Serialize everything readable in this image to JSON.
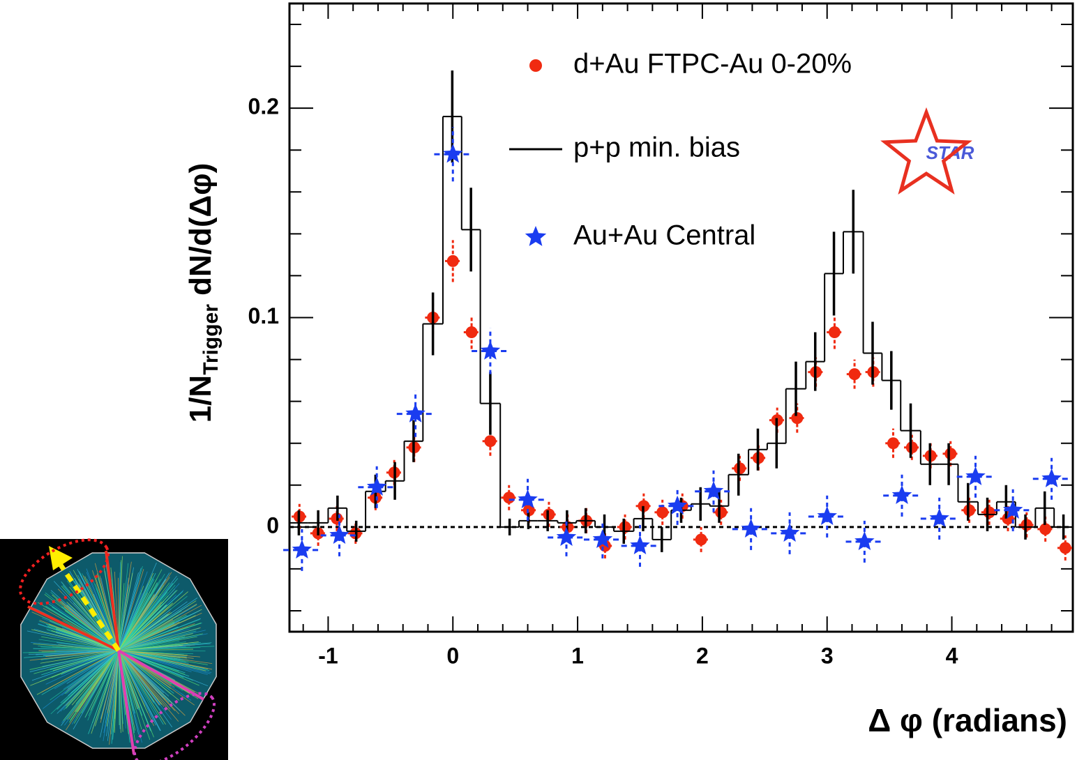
{
  "chart_data": {
    "type": "scatter",
    "xlabel": "Δ φ (radians)",
    "ylabel": {
      "main": "1/N",
      "sub": "Trigger",
      "rest": " dN/d(Δφ)"
    },
    "logo_text": "STAR",
    "xlim": [
      -1.31,
      4.97
    ],
    "ylim": [
      -0.05,
      0.25
    ],
    "xticks": [
      -1,
      0,
      1,
      2,
      3,
      4
    ],
    "yticks": [
      0,
      0.1,
      0.2
    ],
    "xminorticks": [
      -1.2,
      -0.8,
      -0.6,
      -0.4,
      -0.2,
      0.2,
      0.4,
      0.6,
      0.8,
      1.2,
      1.4,
      1.6,
      1.8,
      2.2,
      2.4,
      2.6,
      2.8,
      3.2,
      3.4,
      3.6,
      3.8,
      4.2,
      4.4,
      4.6,
      4.8
    ],
    "yminorticks": [
      -0.04,
      -0.02,
      0.02,
      0.04,
      0.06,
      0.08,
      0.12,
      0.14,
      0.16,
      0.18,
      0.22,
      0.24
    ],
    "hline": 0,
    "series": [
      {
        "name": "d+Au FTPC-Au 0-20%",
        "style": "circle",
        "color": "#f02a10",
        "x": [
          -1.23,
          -1.08,
          -0.93,
          -0.78,
          -0.62,
          -0.47,
          -0.31,
          -0.16,
          0.0,
          0.15,
          0.3,
          0.45,
          0.61,
          0.77,
          0.92,
          1.07,
          1.22,
          1.38,
          1.53,
          1.68,
          1.84,
          1.99,
          2.15,
          2.3,
          2.45,
          2.6,
          2.76,
          2.91,
          3.06,
          3.22,
          3.37,
          3.53,
          3.68,
          3.83,
          3.99,
          4.14,
          4.3,
          4.45,
          4.6,
          4.75,
          4.91
        ],
        "values": [
          0.005,
          -0.003,
          0.004,
          -0.003,
          0.014,
          0.026,
          0.038,
          0.1,
          0.127,
          0.093,
          0.041,
          0.014,
          0.008,
          0.006,
          0.0,
          0.003,
          -0.009,
          0.0,
          0.01,
          0.007,
          0.01,
          -0.006,
          0.007,
          0.028,
          0.033,
          0.051,
          0.052,
          0.074,
          0.093,
          0.073,
          0.074,
          0.04,
          0.038,
          0.034,
          0.035,
          0.008,
          0.007,
          0.004,
          0.001,
          -0.001,
          -0.01
        ],
        "errors": [
          0.006,
          0.006,
          0.006,
          0.005,
          0.006,
          0.006,
          0.007,
          0.008,
          0.01,
          0.008,
          0.007,
          0.006,
          0.006,
          0.006,
          0.006,
          0.006,
          0.006,
          0.006,
          0.006,
          0.006,
          0.006,
          0.006,
          0.006,
          0.006,
          0.006,
          0.006,
          0.007,
          0.007,
          0.008,
          0.007,
          0.007,
          0.007,
          0.006,
          0.006,
          0.006,
          0.006,
          0.006,
          0.006,
          0.006,
          0.006,
          0.006
        ]
      },
      {
        "name": "p+p min. bias",
        "style": "step",
        "color": "#000000",
        "bins": [
          -1.31,
          -1.16,
          -1.0,
          -0.85,
          -0.7,
          -0.54,
          -0.39,
          -0.24,
          -0.08,
          0.07,
          0.22,
          0.38,
          0.53,
          0.68,
          0.84,
          0.99,
          1.14,
          1.29,
          1.45,
          1.6,
          1.75,
          1.91,
          2.06,
          2.21,
          2.37,
          2.52,
          2.67,
          2.83,
          2.98,
          3.13,
          3.29,
          3.44,
          3.59,
          3.75,
          3.9,
          4.05,
          4.21,
          4.36,
          4.51,
          4.67,
          4.82,
          4.97
        ],
        "values": [
          0.002,
          0.002,
          0.009,
          -0.002,
          0.017,
          0.022,
          0.041,
          0.097,
          0.196,
          0.142,
          0.059,
          0.0,
          0.003,
          0.003,
          0.002,
          0.003,
          0.0,
          -0.002,
          0.004,
          -0.006,
          0.008,
          0.011,
          0.01,
          0.025,
          0.037,
          0.04,
          0.066,
          0.079,
          0.121,
          0.141,
          0.083,
          0.07,
          0.046,
          0.03,
          0.03,
          0.012,
          0.006,
          0.012,
          0.0,
          0.009,
          0.0
        ],
        "errors": [
          0.006,
          0.006,
          0.006,
          0.005,
          0.008,
          0.009,
          0.01,
          0.015,
          0.022,
          0.02,
          0.015,
          0.004,
          0.004,
          0.005,
          0.006,
          0.006,
          0.006,
          0.006,
          0.006,
          0.006,
          0.006,
          0.008,
          0.008,
          0.01,
          0.01,
          0.012,
          0.013,
          0.014,
          0.02,
          0.02,
          0.015,
          0.014,
          0.013,
          0.01,
          0.01,
          0.009,
          0.008,
          0.008,
          0.006,
          0.008,
          0.006
        ]
      },
      {
        "name": "Au+Au Central",
        "style": "star",
        "color": "#1a3cf0",
        "x": [
          -1.21,
          -0.91,
          -0.61,
          -0.3,
          0.0,
          0.3,
          0.6,
          0.91,
          1.2,
          1.5,
          1.8,
          2.09,
          2.39,
          2.7,
          3.0,
          3.3,
          3.6,
          3.9,
          4.19,
          4.49,
          4.8
        ],
        "values": [
          -0.011,
          -0.004,
          0.019,
          0.054,
          0.178,
          0.084,
          0.013,
          -0.005,
          -0.006,
          -0.009,
          0.01,
          0.017,
          -0.001,
          -0.003,
          0.005,
          -0.007,
          0.015,
          0.004,
          0.024,
          0.008,
          0.023
        ],
        "errors": [
          0.01,
          0.01,
          0.01,
          0.011,
          0.013,
          0.011,
          0.01,
          0.009,
          0.009,
          0.01,
          0.009,
          0.01,
          0.01,
          0.01,
          0.01,
          0.01,
          0.01,
          0.01,
          0.01,
          0.01,
          0.01
        ]
      }
    ]
  }
}
